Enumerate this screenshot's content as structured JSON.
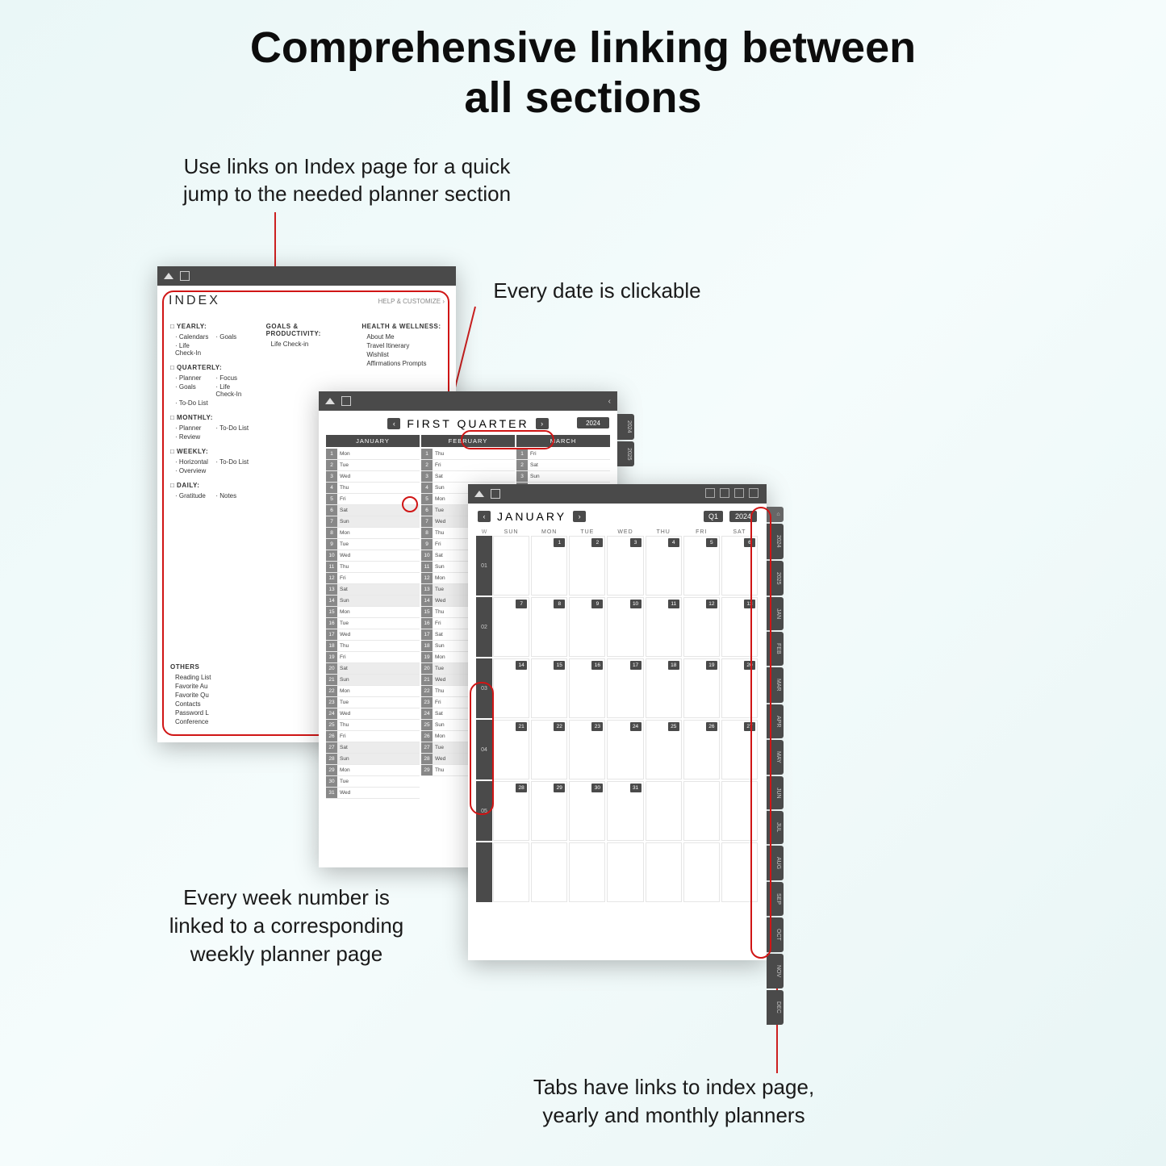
{
  "title_l1": "Comprehensive linking between",
  "title_l2": "all sections",
  "sub1_l1": "Use links on Index page for a quick",
  "sub1_l2": "jump to the needed planner section",
  "sub2": "Every date is clickable",
  "sub3_l1": "Every week number is",
  "sub3_l2": "linked to a corresponding",
  "sub3_l3": "weekly planner page",
  "sub4_l1": "Tabs have links to index page,",
  "sub4_l2": "yearly and monthly planners",
  "index": {
    "title": "INDEX",
    "help": "HELP & CUSTOMIZE ›",
    "c1": [
      {
        "h": "YEARLY:",
        "items": [
          "· Calendars",
          "· Life Check-In"
        ],
        "r": [
          "· Goals"
        ]
      },
      {
        "h": "QUARTERLY:",
        "items": [
          "· Planner",
          "· Goals",
          "· To-Do List"
        ],
        "r": [
          "· Focus",
          "· Life Check-In"
        ]
      },
      {
        "h": "MONTHLY:",
        "items": [
          "· Planner",
          "· Review"
        ],
        "r": [
          "· To-Do List"
        ]
      },
      {
        "h": "WEEKLY:",
        "items": [
          "· Horizontal",
          "· Overview"
        ],
        "r": [
          "· To-Do List"
        ]
      },
      {
        "h": "DAILY:",
        "items": [
          "· Gratitude"
        ],
        "r": [
          "· Notes"
        ]
      }
    ],
    "c2h": "GOALS & PRODUCTIVITY:",
    "c2i": [
      "Life Check-in"
    ],
    "c3h": "HEALTH & WELLNESS:",
    "c3i": [
      "About Me",
      "Travel Itinerary",
      "Wishlist",
      "Affirmations Prompts"
    ],
    "others_h": "OTHERS",
    "others": [
      "Reading List",
      "Favorite Au",
      "Favorite Qu",
      "Contacts",
      "Password L",
      "Conference"
    ]
  },
  "quarter": {
    "title": "FIRST QUARTER",
    "year": "2024",
    "months": [
      "JANUARY",
      "FEBRUARY",
      "MARCH"
    ],
    "days": [
      "Mon",
      "Tue",
      "Wed",
      "Thu",
      "Fri",
      "Sat",
      "Sun"
    ],
    "col1": [
      [
        1,
        "Mon"
      ],
      [
        2,
        "Tue"
      ],
      [
        3,
        "Wed"
      ],
      [
        4,
        "Thu"
      ],
      [
        5,
        "Fri"
      ],
      [
        6,
        "Sat"
      ],
      [
        7,
        "Sun"
      ],
      [
        8,
        "Mon"
      ],
      [
        9,
        "Tue"
      ],
      [
        10,
        "Wed"
      ],
      [
        11,
        "Thu"
      ],
      [
        12,
        "Fri"
      ],
      [
        13,
        "Sat"
      ],
      [
        14,
        "Sun"
      ],
      [
        15,
        "Mon"
      ],
      [
        16,
        "Tue"
      ],
      [
        17,
        "Wed"
      ],
      [
        18,
        "Thu"
      ],
      [
        19,
        "Fri"
      ],
      [
        20,
        "Sat"
      ],
      [
        21,
        "Sun"
      ],
      [
        22,
        "Mon"
      ],
      [
        23,
        "Tue"
      ],
      [
        24,
        "Wed"
      ],
      [
        25,
        "Thu"
      ],
      [
        26,
        "Fri"
      ],
      [
        27,
        "Sat"
      ],
      [
        28,
        "Sun"
      ],
      [
        29,
        "Mon"
      ],
      [
        30,
        "Tue"
      ],
      [
        31,
        "Wed"
      ]
    ],
    "col2": [
      [
        1,
        "Thu"
      ],
      [
        2,
        "Fri"
      ],
      [
        3,
        "Sat"
      ],
      [
        4,
        "Sun"
      ],
      [
        5,
        "Mon"
      ],
      [
        6,
        "Tue"
      ],
      [
        7,
        "Wed"
      ],
      [
        8,
        "Thu"
      ],
      [
        9,
        "Fri"
      ],
      [
        10,
        "Sat"
      ],
      [
        11,
        "Sun"
      ],
      [
        12,
        "Mon"
      ],
      [
        13,
        "Tue"
      ],
      [
        14,
        "Wed"
      ],
      [
        15,
        "Thu"
      ],
      [
        16,
        "Fri"
      ],
      [
        17,
        "Sat"
      ],
      [
        18,
        "Sun"
      ],
      [
        19,
        "Mon"
      ],
      [
        20,
        "Tue"
      ],
      [
        21,
        "Wed"
      ],
      [
        22,
        "Thu"
      ],
      [
        23,
        "Fri"
      ],
      [
        24,
        "Sat"
      ],
      [
        25,
        "Sun"
      ],
      [
        26,
        "Mon"
      ],
      [
        27,
        "Tue"
      ],
      [
        28,
        "Wed"
      ],
      [
        29,
        "Thu"
      ]
    ],
    "col3": [
      [
        1,
        "Fri"
      ],
      [
        2,
        "Sat"
      ],
      [
        3,
        "Sun"
      ],
      [
        4,
        "Mon"
      ]
    ]
  },
  "month": {
    "title": "JANUARY",
    "q": "Q1",
    "year": "2024",
    "dh": [
      "W",
      "SUN",
      "MON",
      "TUE",
      "WED",
      "THU",
      "FRI",
      "SAT"
    ],
    "weeks": [
      {
        "n": "01",
        "d": [
          "",
          "1",
          "2",
          "3",
          "4",
          "5",
          "6"
        ]
      },
      {
        "n": "02",
        "d": [
          "7",
          "8",
          "9",
          "10",
          "11",
          "12",
          "13"
        ]
      },
      {
        "n": "03",
        "d": [
          "14",
          "15",
          "16",
          "17",
          "18",
          "19",
          "20"
        ]
      },
      {
        "n": "04",
        "d": [
          "21",
          "22",
          "23",
          "24",
          "25",
          "26",
          "27"
        ]
      },
      {
        "n": "05",
        "d": [
          "28",
          "29",
          "30",
          "31",
          "",
          "",
          ""
        ]
      },
      {
        "n": "",
        "d": [
          "",
          "",
          "",
          "",
          "",
          "",
          ""
        ]
      }
    ],
    "tabs": [
      "2024",
      "2025",
      "JAN",
      "FEB",
      "MAR",
      "APR",
      "MAY",
      "JUN",
      "JUL",
      "AUG",
      "SEP",
      "OCT",
      "NOV",
      "DEC"
    ]
  },
  "p2tabs": [
    "2024",
    "2025"
  ],
  "colors": {
    "red": "#d01515",
    "dark": "#4a4a4a",
    "bg": "#ffffff"
  }
}
